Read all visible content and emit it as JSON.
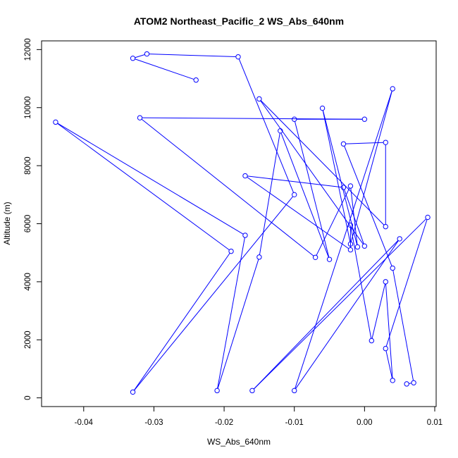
{
  "chart_data": {
    "type": "line",
    "title": "ATOM2 Northeast_Pacific_2 WS_Abs_640nm",
    "xlabel": "WS_Abs_640nm",
    "ylabel": "Altitude (m)",
    "xlim": [
      -0.046,
      0.0102
    ],
    "ylim": [
      -300,
      12300
    ],
    "xticks": [
      -0.04,
      -0.03,
      -0.02,
      -0.01,
      0.0,
      0.01
    ],
    "xtick_labels": [
      "-0.04",
      "-0.03",
      "-0.02",
      "-0.01",
      "0.00",
      "0.01"
    ],
    "yticks": [
      0,
      2000,
      4000,
      6000,
      8000,
      10000,
      12000
    ],
    "ytick_labels": [
      "0",
      "2000",
      "4000",
      "6000",
      "8000",
      "10000",
      "12000"
    ],
    "markers": true,
    "color": "#0000ff",
    "points": [
      {
        "x": -0.024,
        "y": 10950
      },
      {
        "x": -0.033,
        "y": 11700
      },
      {
        "x": -0.031,
        "y": 11850
      },
      {
        "x": -0.018,
        "y": 11750
      },
      {
        "x": -0.01,
        "y": 7000
      },
      {
        "x": -0.033,
        "y": 200
      },
      {
        "x": -0.019,
        "y": 5050
      },
      {
        "x": -0.044,
        "y": 9500
      },
      {
        "x": -0.017,
        "y": 5600
      },
      {
        "x": -0.021,
        "y": 250
      },
      {
        "x": -0.015,
        "y": 4850
      },
      {
        "x": -0.012,
        "y": 9200
      },
      {
        "x": -0.005,
        "y": 4770
      },
      {
        "x": -0.01,
        "y": 9600
      },
      {
        "x": 0.0,
        "y": 9600
      },
      {
        "x": -0.032,
        "y": 9650
      },
      {
        "x": -0.007,
        "y": 4840
      },
      {
        "x": -0.002,
        "y": 7300
      },
      {
        "x": -0.001,
        "y": 5200
      },
      {
        "x": -0.006,
        "y": 9980
      },
      {
        "x": -0.002,
        "y": 5300
      },
      {
        "x": 0.004,
        "y": 10650
      },
      {
        "x": -0.01,
        "y": 250
      },
      {
        "x": 0.005,
        "y": 5480
      },
      {
        "x": -0.016,
        "y": 250
      },
      {
        "x": 0.009,
        "y": 6220
      },
      {
        "x": 0.003,
        "y": 1700
      },
      {
        "x": 0.004,
        "y": 600
      },
      {
        "x": 0.003,
        "y": 4000
      },
      {
        "x": 0.001,
        "y": 1970
      },
      {
        "x": -0.002,
        "y": 5950
      },
      {
        "x": -0.002,
        "y": 5100
      },
      {
        "x": -0.017,
        "y": 7650
      },
      {
        "x": -0.003,
        "y": 7250
      },
      {
        "x": 0.0,
        "y": 5230
      },
      {
        "x": -0.015,
        "y": 10300
      },
      {
        "x": 0.003,
        "y": 5900
      },
      {
        "x": 0.003,
        "y": 8800
      },
      {
        "x": -0.003,
        "y": 8750
      },
      {
        "x": 0.004,
        "y": 4470
      },
      {
        "x": 0.007,
        "y": 520
      },
      {
        "x": 0.006,
        "y": 480
      }
    ]
  }
}
